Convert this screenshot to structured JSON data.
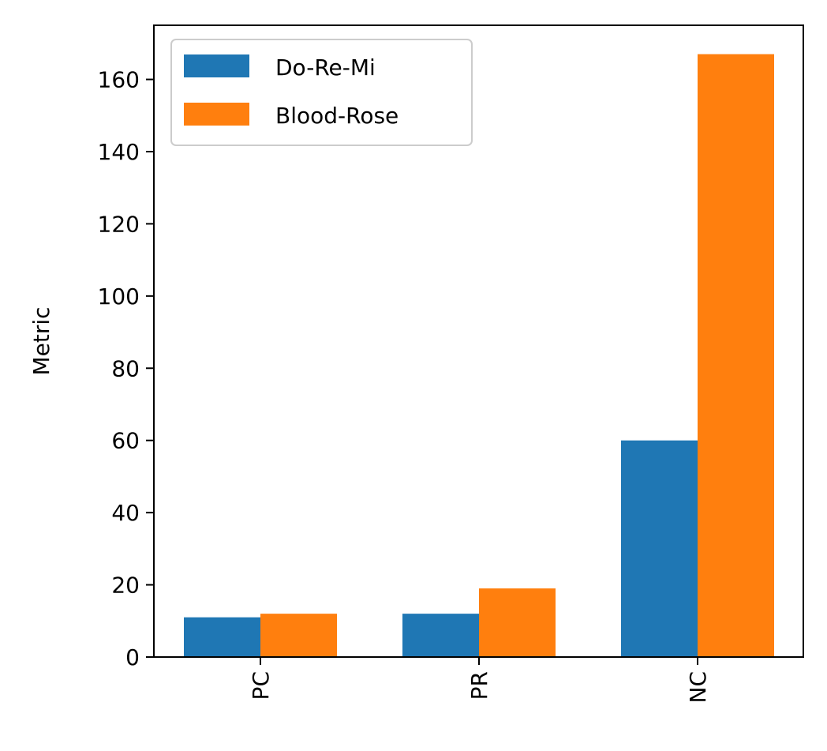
{
  "chart_data": {
    "type": "bar",
    "categories": [
      "PC",
      "PR",
      "NC"
    ],
    "series": [
      {
        "name": "Do-Re-Mi",
        "color": "#1f77b4",
        "values": [
          11,
          12,
          60
        ]
      },
      {
        "name": "Blood-Rose",
        "color": "#ff7f0e",
        "values": [
          12,
          19,
          167
        ]
      }
    ],
    "title": "",
    "xlabel": "",
    "ylabel": "Metric",
    "ylim": [
      0,
      175
    ],
    "yticks": [
      0,
      20,
      40,
      60,
      80,
      100,
      120,
      140,
      160
    ],
    "grid": false,
    "legend_position": "top-left",
    "xtick_rotation": "vertical"
  }
}
